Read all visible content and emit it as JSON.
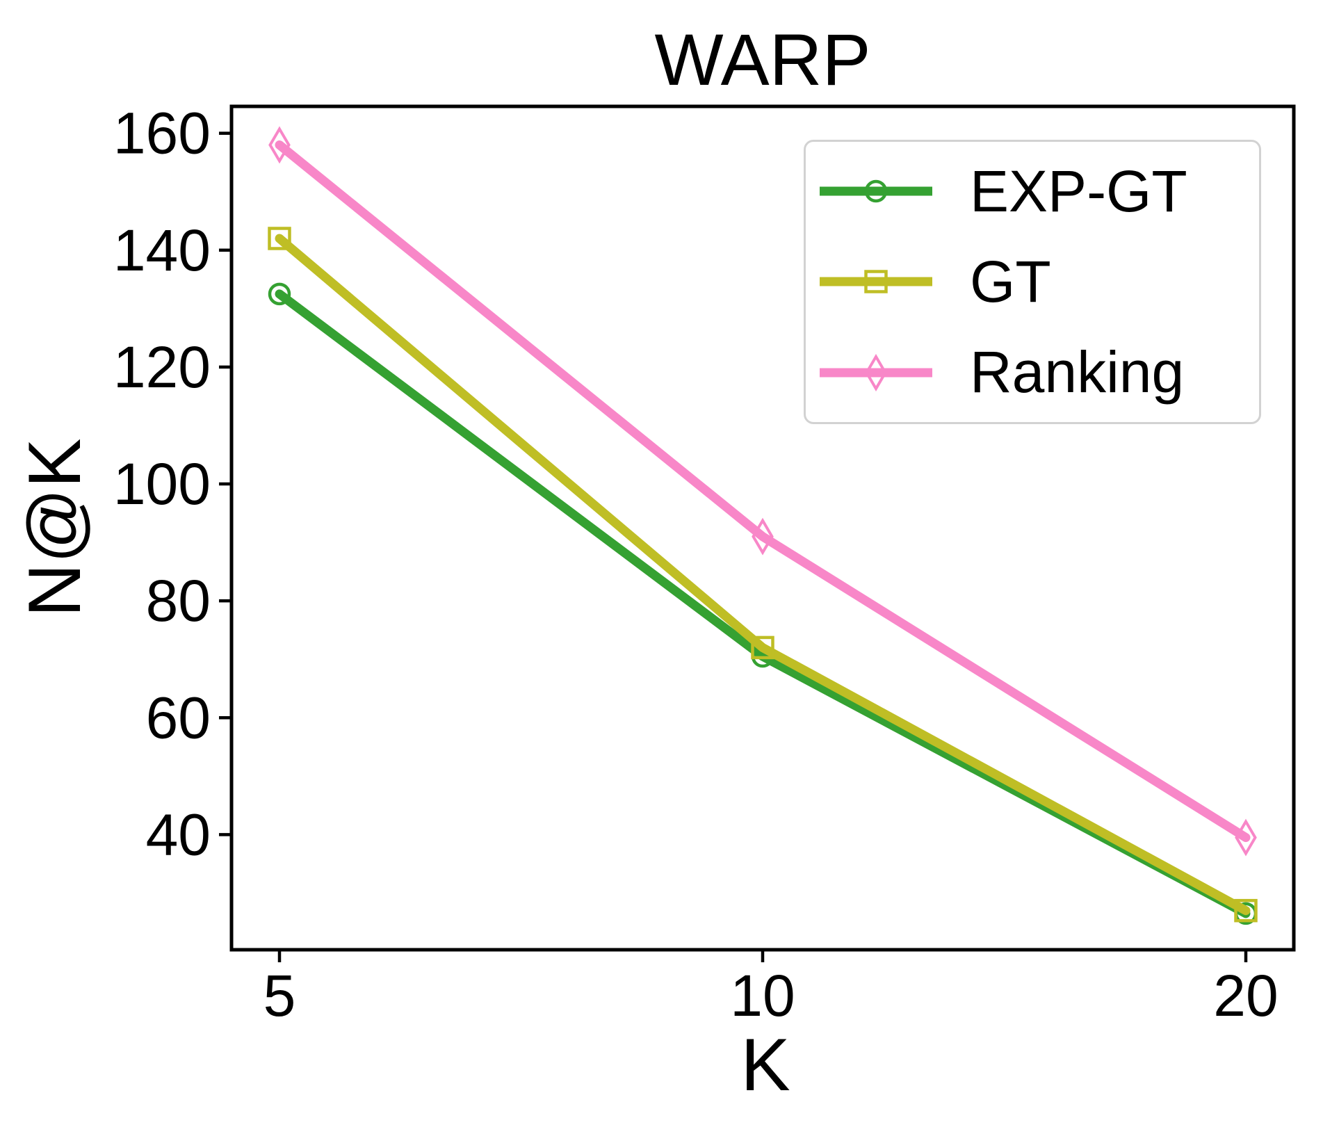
{
  "chart_data": {
    "type": "line",
    "title": "WARP",
    "xlabel": "K",
    "ylabel": "N@K",
    "categories": [
      5,
      10,
      20
    ],
    "x_tick_labels": [
      "5",
      "10",
      "20"
    ],
    "x_scale": "categorical-equal-spacing",
    "y_ticks": [
      40,
      60,
      80,
      100,
      120,
      140,
      160
    ],
    "ylim": [
      20.3,
      164.6
    ],
    "grid": false,
    "legend_position": "upper right",
    "series": [
      {
        "name": "EXP-GT",
        "marker": "circle",
        "color": "#35a132",
        "values": [
          132.5,
          70.5,
          26.5
        ]
      },
      {
        "name": "GT",
        "marker": "square",
        "color": "#bfbe25",
        "values": [
          142.0,
          72.0,
          27.0
        ]
      },
      {
        "name": "Ranking",
        "marker": "diamond",
        "color": "#f887c8",
        "values": [
          158.0,
          91.0,
          39.5
        ]
      }
    ]
  },
  "colors": {
    "axis": "#000000",
    "legend_border": "#d2d2d2",
    "background": "#ffffff"
  }
}
